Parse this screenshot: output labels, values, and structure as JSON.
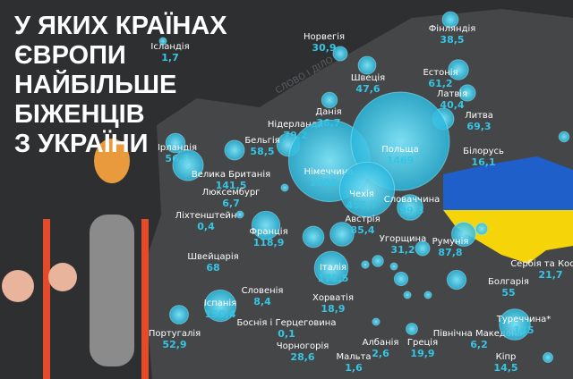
{
  "title_lines": [
    "У ЯКИХ КРАЇНАХ",
    "ЄВРОПИ",
    "НАЙБІЛЬШЕ",
    "БІЖЕНЦІВ",
    "З УКРАЇНИ"
  ],
  "watermark": "СЛОВО І ДІЛО",
  "countries": [
    {
      "name": "Ісландія",
      "value": 1.7,
      "label": "1,7"
    },
    {
      "name": "Норвегія",
      "value": 30.9,
      "label": "30,9"
    },
    {
      "name": "Фінляндія",
      "value": 38.5,
      "label": "38,5"
    },
    {
      "name": "Естонія",
      "value": 61.2,
      "label": "61,2"
    },
    {
      "name": "Швеція",
      "value": 47.6,
      "label": "47,6"
    },
    {
      "name": "Латвія",
      "value": 40.4,
      "label": "40,4"
    },
    {
      "name": "Данія",
      "value": 36.7,
      "label": "36,7"
    },
    {
      "name": "Нідерланди",
      "value": 79.2,
      "label": "79,2"
    },
    {
      "name": "Литва",
      "value": 69.3,
      "label": "69,3"
    },
    {
      "name": "Ірландія",
      "value": 56.3,
      "label": "56,3"
    },
    {
      "name": "Бельгія",
      "value": 58.5,
      "label": "58,5"
    },
    {
      "name": "Німеччина",
      "value": 1008.9,
      "label": "1008,9"
    },
    {
      "name": "Польща",
      "value": 1469,
      "label": "1469"
    },
    {
      "name": "Білорусь",
      "value": 16.1,
      "label": "16,1"
    },
    {
      "name": "Велика Британія",
      "value": 141.5,
      "label": "141,5"
    },
    {
      "name": "Люксембург",
      "value": 6.7,
      "label": "6,7"
    },
    {
      "name": "Чехія",
      "value": 455.7,
      "label": "455,7"
    },
    {
      "name": "Словаччина",
      "value": 99.3,
      "label": "99,3"
    },
    {
      "name": "Ліхтенштейн",
      "value": 0.4,
      "label": "0,4"
    },
    {
      "name": "Австрія",
      "value": 85.4,
      "label": "85,4"
    },
    {
      "name": "Франція",
      "value": 118.9,
      "label": "118,9"
    },
    {
      "name": "Угорщина",
      "value": 31.2,
      "label": "31,2"
    },
    {
      "name": "Румунія",
      "value": 87.8,
      "label": "87,8"
    },
    {
      "name": "Швейцарія",
      "value": 68,
      "label": "68"
    },
    {
      "name": "Італія",
      "value": 171.5,
      "label": "171,5"
    },
    {
      "name": "Сербія та Косово",
      "value": 21.7,
      "label": "21,7"
    },
    {
      "name": "Словенія",
      "value": 8.4,
      "label": "8,4"
    },
    {
      "name": "Хорватія",
      "value": 18.9,
      "label": "18,9"
    },
    {
      "name": "Іспанія",
      "value": 150.4,
      "label": "150,4"
    },
    {
      "name": "Болгарія",
      "value": 55,
      "label": "55"
    },
    {
      "name": "Боснія і Герцеговина",
      "value": 0.1,
      "label": "0,1"
    },
    {
      "name": "Португалія",
      "value": 52.9,
      "label": "52,9"
    },
    {
      "name": "Чорногорія",
      "value": 28.6,
      "label": "28,6"
    },
    {
      "name": "Албанія",
      "value": 2.6,
      "label": "2,6"
    },
    {
      "name": "Греція",
      "value": 19.9,
      "label": "19,9"
    },
    {
      "name": "Північна Македонія",
      "value": 6.2,
      "label": "6,2"
    },
    {
      "name": "Туреччина*",
      "value": 145,
      "label": "145"
    },
    {
      "name": "Мальта",
      "value": 1.6,
      "label": "1,6"
    },
    {
      "name": "Кіпр",
      "value": 14.5,
      "label": "14,5"
    }
  ]
}
